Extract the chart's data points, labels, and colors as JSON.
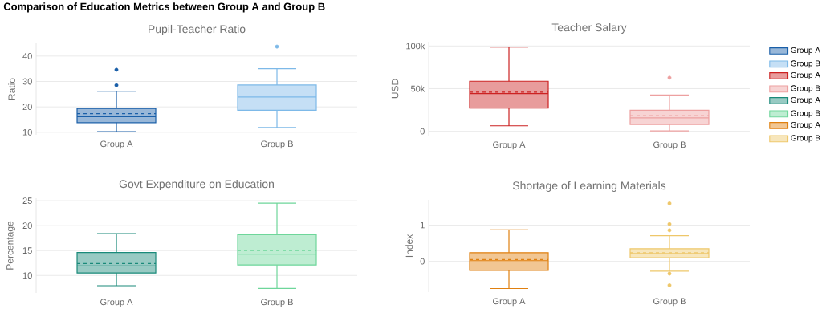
{
  "chart_data": [
    {
      "type": "box",
      "title": "Pupil-Teacher Ratio",
      "ylabel": "Ratio",
      "annotations": [
        "Comparison of Education Metrics between Group A and Group B"
      ],
      "categories": [
        "Group A",
        "Group B"
      ],
      "ylim": [
        9,
        45
      ],
      "yticks": [
        10,
        20,
        30,
        40
      ],
      "grid": "y",
      "legend": "right",
      "series": [
        {
          "name": "Group A",
          "color": "#1a5fa8",
          "boxes": [
            {
              "low": 10.2,
              "q1": 13.8,
              "median": 16.1,
              "q3": 19.4,
              "high": 26.2,
              "mean": 17.3,
              "outliers": [
                28.5,
                34.6
              ]
            },
            null
          ]
        },
        {
          "name": "Group B",
          "color": "#7db9e8",
          "boxes": [
            null,
            {
              "low": 11.9,
              "q1": 18.7,
              "median": 23.9,
              "q3": 28.6,
              "high": 35,
              "outliers": [
                43.7
              ]
            }
          ]
        }
      ]
    },
    {
      "type": "box",
      "title": "Teacher Salary",
      "ylabel": "USD",
      "categories": [
        "Group A",
        "Group B"
      ],
      "ylim": [
        -5000,
        105000
      ],
      "yticks": [
        0,
        {
          "value": 50000,
          "label": "50k"
        },
        {
          "value": 100000,
          "label": "100k"
        }
      ],
      "grid": "y",
      "legend": "right",
      "series": [
        {
          "name": "Group A",
          "color": "#cc2222",
          "boxes": [
            {
              "low": 6500,
              "q1": 27400,
              "median": 44200,
              "q3": 58700,
              "high": 98700,
              "mean": 45800
            },
            null
          ]
        },
        {
          "name": "Group B",
          "color": "#eda0a0",
          "boxes": [
            null,
            {
              "low": 600,
              "q1": 8000,
              "median": 15800,
              "q3": 24800,
              "high": 42600,
              "mean": 18400,
              "outliers": [
                62900
              ]
            }
          ]
        }
      ]
    },
    {
      "type": "box",
      "title": "Govt Expenditure on Education",
      "ylabel": "Percentage",
      "categories": [
        "Group A",
        "Group B"
      ],
      "ylim": [
        6.5,
        25.5
      ],
      "yticks": [
        10,
        15,
        20,
        25
      ],
      "grid": "y",
      "legend": "right",
      "series": [
        {
          "name": "Group A",
          "color": "#1a8a7a",
          "boxes": [
            {
              "low": 7.95,
              "q1": 10.5,
              "median": 11.9,
              "q3": 14.6,
              "high": 18.4,
              "mean": 12.4
            },
            null
          ]
        },
        {
          "name": "Group B",
          "color": "#6ed69a",
          "boxes": [
            null,
            {
              "low": 7.4,
              "q1": 12.1,
              "median": 14.3,
              "q3": 18.2,
              "high": 24.5,
              "mean": 15.0
            }
          ]
        }
      ]
    },
    {
      "type": "box",
      "title": "Shortage of Learning Materials",
      "ylabel": "Index",
      "categories": [
        "Group A",
        "Group B"
      ],
      "ylim": [
        -0.85,
        1.7
      ],
      "yticks": [
        0,
        1
      ],
      "grid": "y",
      "legend": "right",
      "series": [
        {
          "name": "Group A",
          "color": "#e08010",
          "boxes": [
            {
              "low": -0.75,
              "q1": -0.25,
              "median": 0.02,
              "q3": 0.24,
              "high": 0.87,
              "mean": 0.05
            },
            null
          ]
        },
        {
          "name": "Group B",
          "color": "#eec76a",
          "boxes": [
            null,
            {
              "low": -0.27,
              "q1": 0.1,
              "median": 0.22,
              "q3": 0.35,
              "high": 0.71,
              "mean": 0.24,
              "outliers": [
                1.6,
                1.03,
                0.86,
                -0.34,
                -0.66
              ]
            }
          ]
        }
      ]
    }
  ]
}
